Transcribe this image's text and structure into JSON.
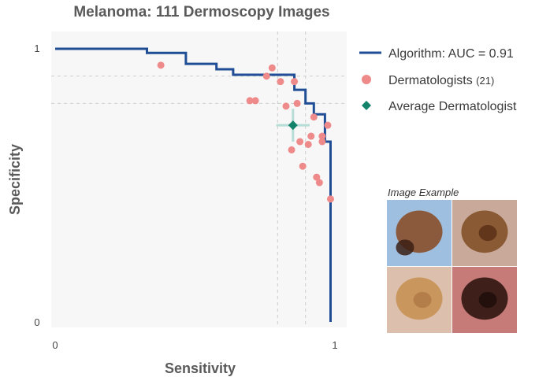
{
  "chart_data": {
    "type": "scatter",
    "title": "Melanoma: 111 Dermoscopy Images",
    "xlabel": "Sensitivity",
    "ylabel": "Specificity",
    "xlim": [
      0,
      1
    ],
    "ylim": [
      0,
      1
    ],
    "x_ticks": [
      "0",
      "1"
    ],
    "y_ticks": [
      "0",
      "1"
    ],
    "grid": false,
    "legend_position": "right",
    "series": [
      {
        "name": "Algorithm: AUC = 0.91",
        "kind": "step-line",
        "color": "#1f4e96",
        "x": [
          0,
          0.33,
          0.33,
          0.47,
          0.47,
          0.58,
          0.58,
          0.64,
          0.64,
          0.86,
          0.86,
          0.9,
          0.9,
          0.93,
          0.93,
          0.97,
          0.97,
          0.99,
          0.99
        ],
        "y": [
          1,
          1,
          0.985,
          0.985,
          0.945,
          0.945,
          0.925,
          0.925,
          0.905,
          0.905,
          0.85,
          0.85,
          0.8,
          0.8,
          0.76,
          0.76,
          0.66,
          0.66,
          0
        ]
      },
      {
        "name": "Dermatologists",
        "name_suffix": "(21)",
        "kind": "points",
        "color": "#ef8a8a",
        "x": [
          0.38,
          0.78,
          0.76,
          0.81,
          0.72,
          0.7,
          0.83,
          0.87,
          0.86,
          0.93,
          0.98,
          0.96,
          0.92,
          0.96,
          0.88,
          0.85,
          0.91,
          0.89,
          0.94,
          0.95,
          0.99
        ],
        "y": [
          0.94,
          0.93,
          0.9,
          0.88,
          0.81,
          0.81,
          0.79,
          0.8,
          0.88,
          0.75,
          0.72,
          0.68,
          0.68,
          0.66,
          0.66,
          0.63,
          0.65,
          0.57,
          0.53,
          0.51,
          0.45
        ]
      },
      {
        "name": "Average Dermatologist",
        "kind": "marker-with-error",
        "color": "#12836a",
        "x": [
          0.855
        ],
        "y": [
          0.72
        ],
        "x_err": [
          0.06
        ],
        "y_err": [
          0.06
        ]
      }
    ],
    "reference_lines": {
      "vertical": [
        0.8,
        0.9
      ],
      "horizontal": [
        0.9,
        0.8
      ]
    }
  },
  "inset": {
    "caption": "Image Example",
    "tiles": [
      {
        "name": "lesion-tile-1",
        "bg": "#9fbfe0",
        "lesion": "#8b5a3c",
        "spot": "#3a1e14"
      },
      {
        "name": "lesion-tile-2",
        "bg": "#c9a99a",
        "lesion": "#8a5a34",
        "spot": "#5a3018"
      },
      {
        "name": "lesion-tile-3",
        "bg": "#dcc0ad",
        "lesion": "#c9965e",
        "spot": "#b07a48"
      },
      {
        "name": "lesion-tile-4",
        "bg": "#c77b78",
        "lesion": "#3e1f1a",
        "spot": "#1f0e0b"
      }
    ]
  },
  "colors": {
    "plot_bg": "#f7f7f7",
    "ref_line": "#cfcfcf",
    "error_bar": "#b7ddd6"
  }
}
